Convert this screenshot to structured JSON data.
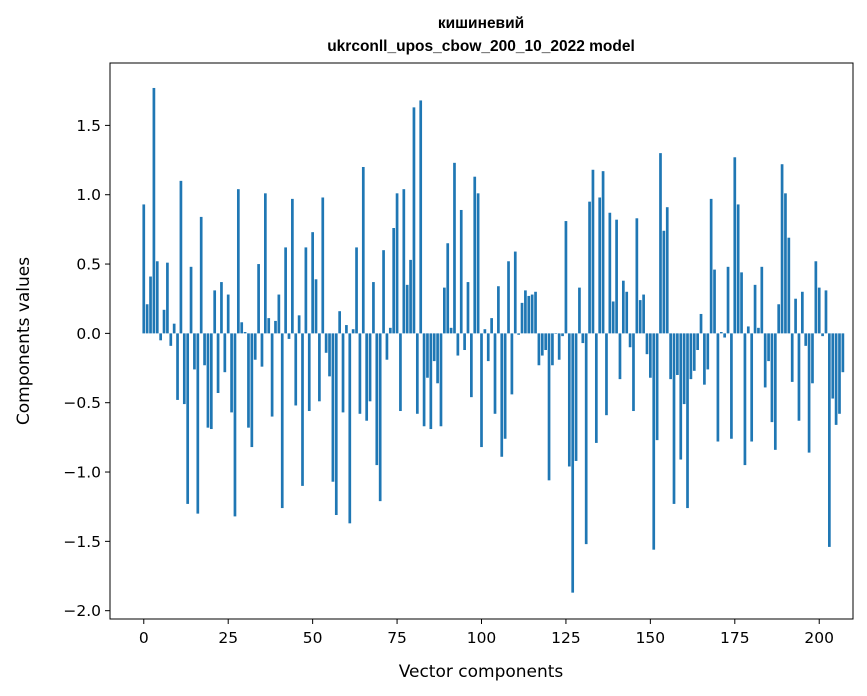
{
  "chart_data": {
    "type": "bar",
    "title_line1": "кишиневий",
    "title_line2": "ukrconll_upos_cbow_200_10_2022 model",
    "xlabel": "Vector components",
    "ylabel": "Components values",
    "xlim": [
      -10,
      210
    ],
    "ylim": [
      -2.06,
      1.95
    ],
    "xticks": [
      0,
      25,
      50,
      75,
      100,
      125,
      150,
      175,
      200
    ],
    "xtick_labels": [
      "0",
      "25",
      "50",
      "75",
      "100",
      "125",
      "150",
      "175",
      "200"
    ],
    "yticks": [
      1.5,
      1.0,
      0.5,
      0.0,
      -0.5,
      -1.0,
      -1.5,
      -2.0
    ],
    "ytick_labels": [
      "1.5",
      "1.0",
      "0.5",
      "0.0",
      "−0.5",
      "−1.0",
      "−1.5",
      "−2.0"
    ],
    "bar_color": "#1f77b4",
    "values": [
      0.93,
      0.21,
      0.41,
      1.77,
      0.52,
      -0.05,
      0.17,
      0.51,
      -0.09,
      0.07,
      -0.48,
      1.1,
      -0.51,
      -1.23,
      0.48,
      -0.26,
      -1.3,
      0.84,
      -0.23,
      -0.68,
      -0.69,
      0.31,
      -0.43,
      0.37,
      -0.28,
      0.28,
      -0.57,
      -1.32,
      1.04,
      0.08,
      0.01,
      -0.68,
      -0.82,
      -0.19,
      0.5,
      -0.24,
      1.01,
      0.11,
      -0.6,
      0.09,
      0.28,
      -1.26,
      0.62,
      -0.04,
      0.97,
      -0.52,
      0.13,
      -1.1,
      0.62,
      -0.56,
      0.73,
      0.39,
      -0.49,
      0.98,
      -0.14,
      -0.31,
      -1.07,
      -1.31,
      0.16,
      -0.57,
      0.06,
      -1.37,
      0.03,
      0.62,
      -0.58,
      1.2,
      -0.63,
      -0.49,
      0.37,
      -0.95,
      -1.21,
      0.6,
      -0.19,
      0.04,
      0.76,
      1.01,
      -0.56,
      1.04,
      0.35,
      0.53,
      1.63,
      -0.58,
      1.68,
      -0.67,
      -0.32,
      -0.69,
      -0.2,
      -0.36,
      -0.67,
      0.33,
      0.65,
      0.04,
      1.23,
      -0.16,
      0.89,
      -0.12,
      0.37,
      -0.46,
      1.13,
      1.01,
      -0.82,
      0.03,
      -0.2,
      0.11,
      -0.58,
      0.34,
      -0.89,
      -0.76,
      0.52,
      -0.44,
      0.59,
      -0.01,
      0.22,
      0.31,
      0.27,
      0.28,
      0.3,
      -0.23,
      -0.16,
      -0.12,
      -1.06,
      -0.23,
      0.0,
      -0.19,
      -0.02,
      0.81,
      -0.96,
      -1.87,
      -0.92,
      0.33,
      -0.07,
      -1.52,
      0.95,
      1.18,
      -0.79,
      0.98,
      1.17,
      -0.59,
      0.87,
      0.23,
      0.82,
      -0.33,
      0.38,
      0.3,
      -0.1,
      -0.56,
      0.83,
      0.24,
      0.28,
      -0.15,
      -0.32,
      -1.56,
      -0.77,
      1.3,
      0.74,
      0.91,
      -0.33,
      -1.23,
      -0.3,
      -0.91,
      -0.51,
      -1.26,
      -0.33,
      -0.27,
      -0.12,
      0.14,
      -0.37,
      -0.26,
      0.97,
      0.46,
      -0.78,
      0.01,
      -0.03,
      0.48,
      -0.76,
      1.27,
      0.93,
      0.44,
      -0.95,
      0.05,
      -0.78,
      0.35,
      0.04,
      0.48,
      -0.39,
      -0.2,
      -0.64,
      -0.84,
      0.21,
      1.22,
      1.01,
      0.69,
      -0.35,
      0.25,
      -0.63,
      0.3,
      -0.09,
      -0.86,
      -0.36,
      0.52,
      0.33,
      -0.02,
      0.31,
      -1.54,
      -0.47,
      -0.66,
      -0.58,
      -0.28
    ]
  }
}
